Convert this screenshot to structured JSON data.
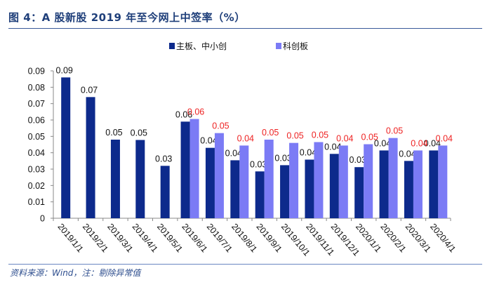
{
  "title": "图 4：A 股新股 2019 年至今网上中签率（%）",
  "source": "资料来源：Wind，注：剔除异常值",
  "chart_data": {
    "type": "bar",
    "title": "",
    "xlabel": "",
    "ylabel": "",
    "ylim": [
      0,
      0.09
    ],
    "yticks": [
      "0",
      "0.01",
      "0.02",
      "0.03",
      "0.04",
      "0.05",
      "0.06",
      "0.07",
      "0.08",
      "0.09"
    ],
    "legend_position": "top",
    "grid": false,
    "categories": [
      "2019/1/1",
      "2019/2/1",
      "2019/3/1",
      "2019/4/1",
      "2019/5/1",
      "2019/6/1",
      "2019/7/1",
      "2019/8/1",
      "2019/9/1",
      "2019/10/1",
      "2019/11/1",
      "2019/12/1",
      "2020/1/1",
      "2020/2/1",
      "2020/3/1",
      "2020/4/1"
    ],
    "series": [
      {
        "name": "主板、中小创",
        "color": "#0d2a8c",
        "label_color": "#111111",
        "values": [
          0.086,
          0.074,
          0.048,
          0.0478,
          0.032,
          0.059,
          0.043,
          0.0354,
          0.0286,
          0.0324,
          0.0358,
          0.0393,
          0.0312,
          0.0414,
          0.035,
          0.0414
        ]
      },
      {
        "name": "科创板",
        "color": "#7b7bf5",
        "label_color": "#ee2222",
        "values": [
          null,
          null,
          null,
          null,
          null,
          0.0606,
          0.052,
          0.0444,
          0.048,
          0.046,
          0.0465,
          0.0444,
          0.0452,
          0.049,
          0.0414,
          0.0444
        ]
      }
    ]
  }
}
